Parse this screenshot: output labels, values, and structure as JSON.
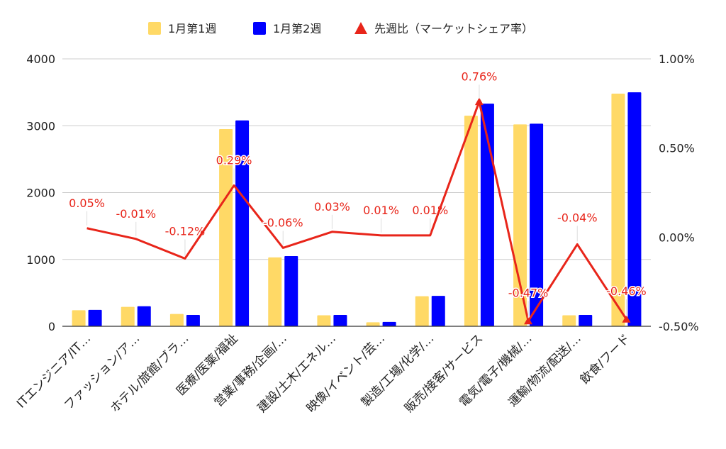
{
  "chart_data": {
    "type": "bar",
    "categories": [
      "ITエンジニア/IT…",
      "ファッション/ア…",
      "ホテル/旅館/ブラ…",
      "医療/医薬/福祉",
      "営業/事務/企画/…",
      "建設/土木/エネル…",
      "映像/イベント/芸…",
      "製造/工場/化学/…",
      "販売/接客/サービス",
      "電気/電子/機械/…",
      "運輸/物流/配送/…",
      "飲食/フード"
    ],
    "series": [
      {
        "name": "1月第1週",
        "type": "bar",
        "axis": "left",
        "color": "#ffd966",
        "values": [
          240,
          290,
          185,
          2950,
          1030,
          165,
          60,
          450,
          3150,
          3020,
          165,
          3480
        ]
      },
      {
        "name": "1月第2週",
        "type": "bar",
        "axis": "left",
        "color": "#0000ff",
        "values": [
          245,
          300,
          170,
          3080,
          1050,
          170,
          65,
          455,
          3330,
          3030,
          170,
          3500
        ]
      },
      {
        "name": "先週比（マーケットシェア率）",
        "type": "line",
        "axis": "right",
        "color": "#e8251a",
        "values": [
          0.05,
          -0.01,
          -0.12,
          0.29,
          -0.06,
          0.03,
          0.01,
          0.01,
          0.76,
          -0.47,
          -0.04,
          -0.46
        ],
        "labels": [
          "0.05%",
          "-0.01%",
          "-0.12%",
          "0.29%",
          "-0.06%",
          "0.03%",
          "0.01%",
          "0.01%",
          "0.76%",
          "-0.47%",
          "-0.04%",
          "-0.46%"
        ]
      }
    ],
    "y_left": {
      "min": 0,
      "max": 4000,
      "ticks": [
        "0",
        "1000",
        "2000",
        "3000",
        "4000"
      ]
    },
    "y_right": {
      "min": -0.5,
      "max": 1.0,
      "ticks": [
        "-0.50%",
        "0.00%",
        "0.50%",
        "1.00%"
      ]
    },
    "grid": true,
    "legend_position": "top-center"
  }
}
